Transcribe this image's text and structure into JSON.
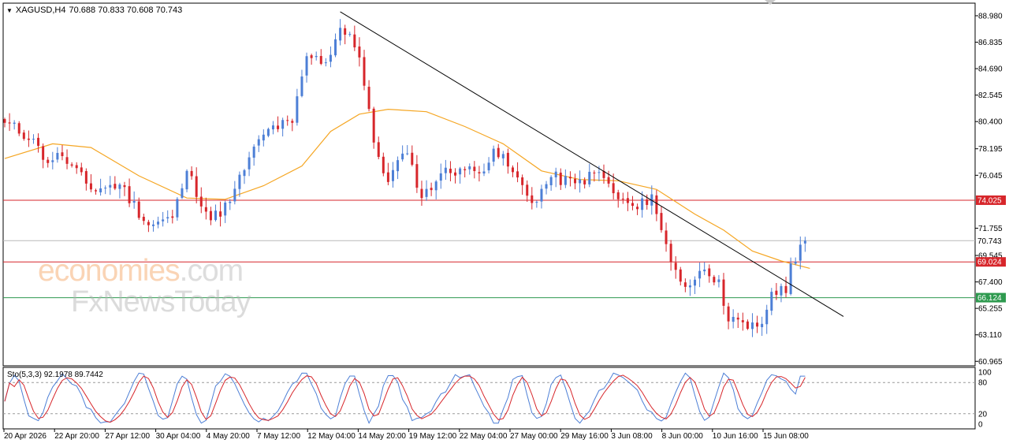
{
  "header": {
    "symbol": "XAGUSD,H4",
    "ohlc": "70.688 70.833 70.608 70.743"
  },
  "stochastic": {
    "label": "Sto(5,3,3) 92.1978 89.7442",
    "levels": [
      "100",
      "80",
      "20",
      "0"
    ]
  },
  "watermark": {
    "line1_main": "economies",
    "line1_tail": ".com",
    "line2": "FxNewsToday"
  },
  "colors": {
    "bull": "#4d7fd6",
    "bear": "#d7262b",
    "ma": "#f5a623",
    "resistance": "#d7262b",
    "support": "#2e9a4f",
    "current": "#b9b9b9",
    "trendline": "#000000",
    "sto_main": "#4d7fd6",
    "sto_signal": "#d7262b"
  },
  "chart_data": {
    "type": "candlestick",
    "symbol": "XAGUSD",
    "timeframe": "H4",
    "y_ticks": [
      "88.980",
      "86.835",
      "84.690",
      "82.545",
      "80.400",
      "78.195",
      "76.045",
      "71.755",
      "69.545",
      "67.400",
      "65.255",
      "63.110",
      "60.965"
    ],
    "ylim": [
      60.6,
      90.0
    ],
    "x_ticks": [
      "20 Apr 2026",
      "22 Apr 20:00",
      "27 Apr 12:00",
      "30 Apr 04:00",
      "4 May 20:00",
      "7 May 12:00",
      "12 May 04:00",
      "14 May 20:00",
      "19 May 12:00",
      "22 May 04:00",
      "27 May 00:00",
      "29 May 16:00",
      "3 Jun 08:00",
      "8 Jun 00:00",
      "10 Jun 16:00",
      "15 Jun 08:00"
    ],
    "levels": [
      {
        "label": "74.025",
        "value": 74.025,
        "kind": "resistance"
      },
      {
        "label": "69.024",
        "value": 69.024,
        "kind": "resistance"
      },
      {
        "label": "66.124",
        "value": 66.124,
        "kind": "support"
      },
      {
        "label": "70.743",
        "value": 70.743,
        "kind": "current"
      }
    ],
    "trendline": {
      "from": {
        "bar": 70,
        "price": 89.3
      },
      "to": {
        "bar": 175,
        "price": 64.6
      }
    },
    "anchors": [
      {
        "bar": 0,
        "price": 80.3
      },
      {
        "bar": 6,
        "price": 79.0
      },
      {
        "bar": 8,
        "price": 77.3
      },
      {
        "bar": 12,
        "price": 77.6
      },
      {
        "bar": 18,
        "price": 74.9
      },
      {
        "bar": 24,
        "price": 75.3
      },
      {
        "bar": 30,
        "price": 72.0
      },
      {
        "bar": 35,
        "price": 72.6
      },
      {
        "bar": 38,
        "price": 76.4
      },
      {
        "bar": 43,
        "price": 72.4
      },
      {
        "bar": 47,
        "price": 73.9
      },
      {
        "bar": 51,
        "price": 77.5
      },
      {
        "bar": 55,
        "price": 79.8
      },
      {
        "bar": 60,
        "price": 80.3
      },
      {
        "bar": 63,
        "price": 85.7
      },
      {
        "bar": 67,
        "price": 85.2
      },
      {
        "bar": 70,
        "price": 88.0
      },
      {
        "bar": 72,
        "price": 87.5
      },
      {
        "bar": 74,
        "price": 85.6
      },
      {
        "bar": 77,
        "price": 78.7
      },
      {
        "bar": 80,
        "price": 75.5
      },
      {
        "bar": 83,
        "price": 77.8
      },
      {
        "bar": 85,
        "price": 76.9
      },
      {
        "bar": 87,
        "price": 74.2
      },
      {
        "bar": 91,
        "price": 76.2
      },
      {
        "bar": 95,
        "price": 76.6
      },
      {
        "bar": 99,
        "price": 76.2
      },
      {
        "bar": 102,
        "price": 78.2
      },
      {
        "bar": 106,
        "price": 76.3
      },
      {
        "bar": 110,
        "price": 73.8
      },
      {
        "bar": 114,
        "price": 75.9
      },
      {
        "bar": 119,
        "price": 75.4
      },
      {
        "bar": 124,
        "price": 76.3
      },
      {
        "bar": 128,
        "price": 74.1
      },
      {
        "bar": 132,
        "price": 73.3
      },
      {
        "bar": 135,
        "price": 74.5
      },
      {
        "bar": 137,
        "price": 71.6
      },
      {
        "bar": 139,
        "price": 69.0
      },
      {
        "bar": 142,
        "price": 67.0
      },
      {
        "bar": 146,
        "price": 68.4
      },
      {
        "bar": 149,
        "price": 67.6
      },
      {
        "bar": 151,
        "price": 64.2
      },
      {
        "bar": 155,
        "price": 63.6
      },
      {
        "bar": 158,
        "price": 64.0
      },
      {
        "bar": 160,
        "price": 66.6
      },
      {
        "bar": 163,
        "price": 66.5
      },
      {
        "bar": 164,
        "price": 68.9
      },
      {
        "bar": 167,
        "price": 70.743
      }
    ],
    "ma_points": [
      {
        "bar": 0,
        "price": 77.4
      },
      {
        "bar": 10,
        "price": 78.6
      },
      {
        "bar": 18,
        "price": 78.3
      },
      {
        "bar": 28,
        "price": 76.0
      },
      {
        "bar": 38,
        "price": 74.2
      },
      {
        "bar": 46,
        "price": 74.1
      },
      {
        "bar": 54,
        "price": 75.2
      },
      {
        "bar": 62,
        "price": 76.8
      },
      {
        "bar": 68,
        "price": 79.6
      },
      {
        "bar": 74,
        "price": 81.0
      },
      {
        "bar": 80,
        "price": 81.4
      },
      {
        "bar": 88,
        "price": 81.2
      },
      {
        "bar": 96,
        "price": 80.0
      },
      {
        "bar": 104,
        "price": 78.6
      },
      {
        "bar": 112,
        "price": 76.4
      },
      {
        "bar": 120,
        "price": 75.7
      },
      {
        "bar": 128,
        "price": 75.6
      },
      {
        "bar": 136,
        "price": 74.9
      },
      {
        "bar": 144,
        "price": 72.9
      },
      {
        "bar": 150,
        "price": 71.6
      },
      {
        "bar": 156,
        "price": 69.9
      },
      {
        "bar": 162,
        "price": 69.1
      },
      {
        "bar": 168,
        "price": 68.5
      }
    ],
    "stochastic": {
      "params": "5,3,3",
      "main": 92.1978,
      "signal": 89.7442,
      "levels": [
        0,
        20,
        80,
        100
      ]
    }
  }
}
